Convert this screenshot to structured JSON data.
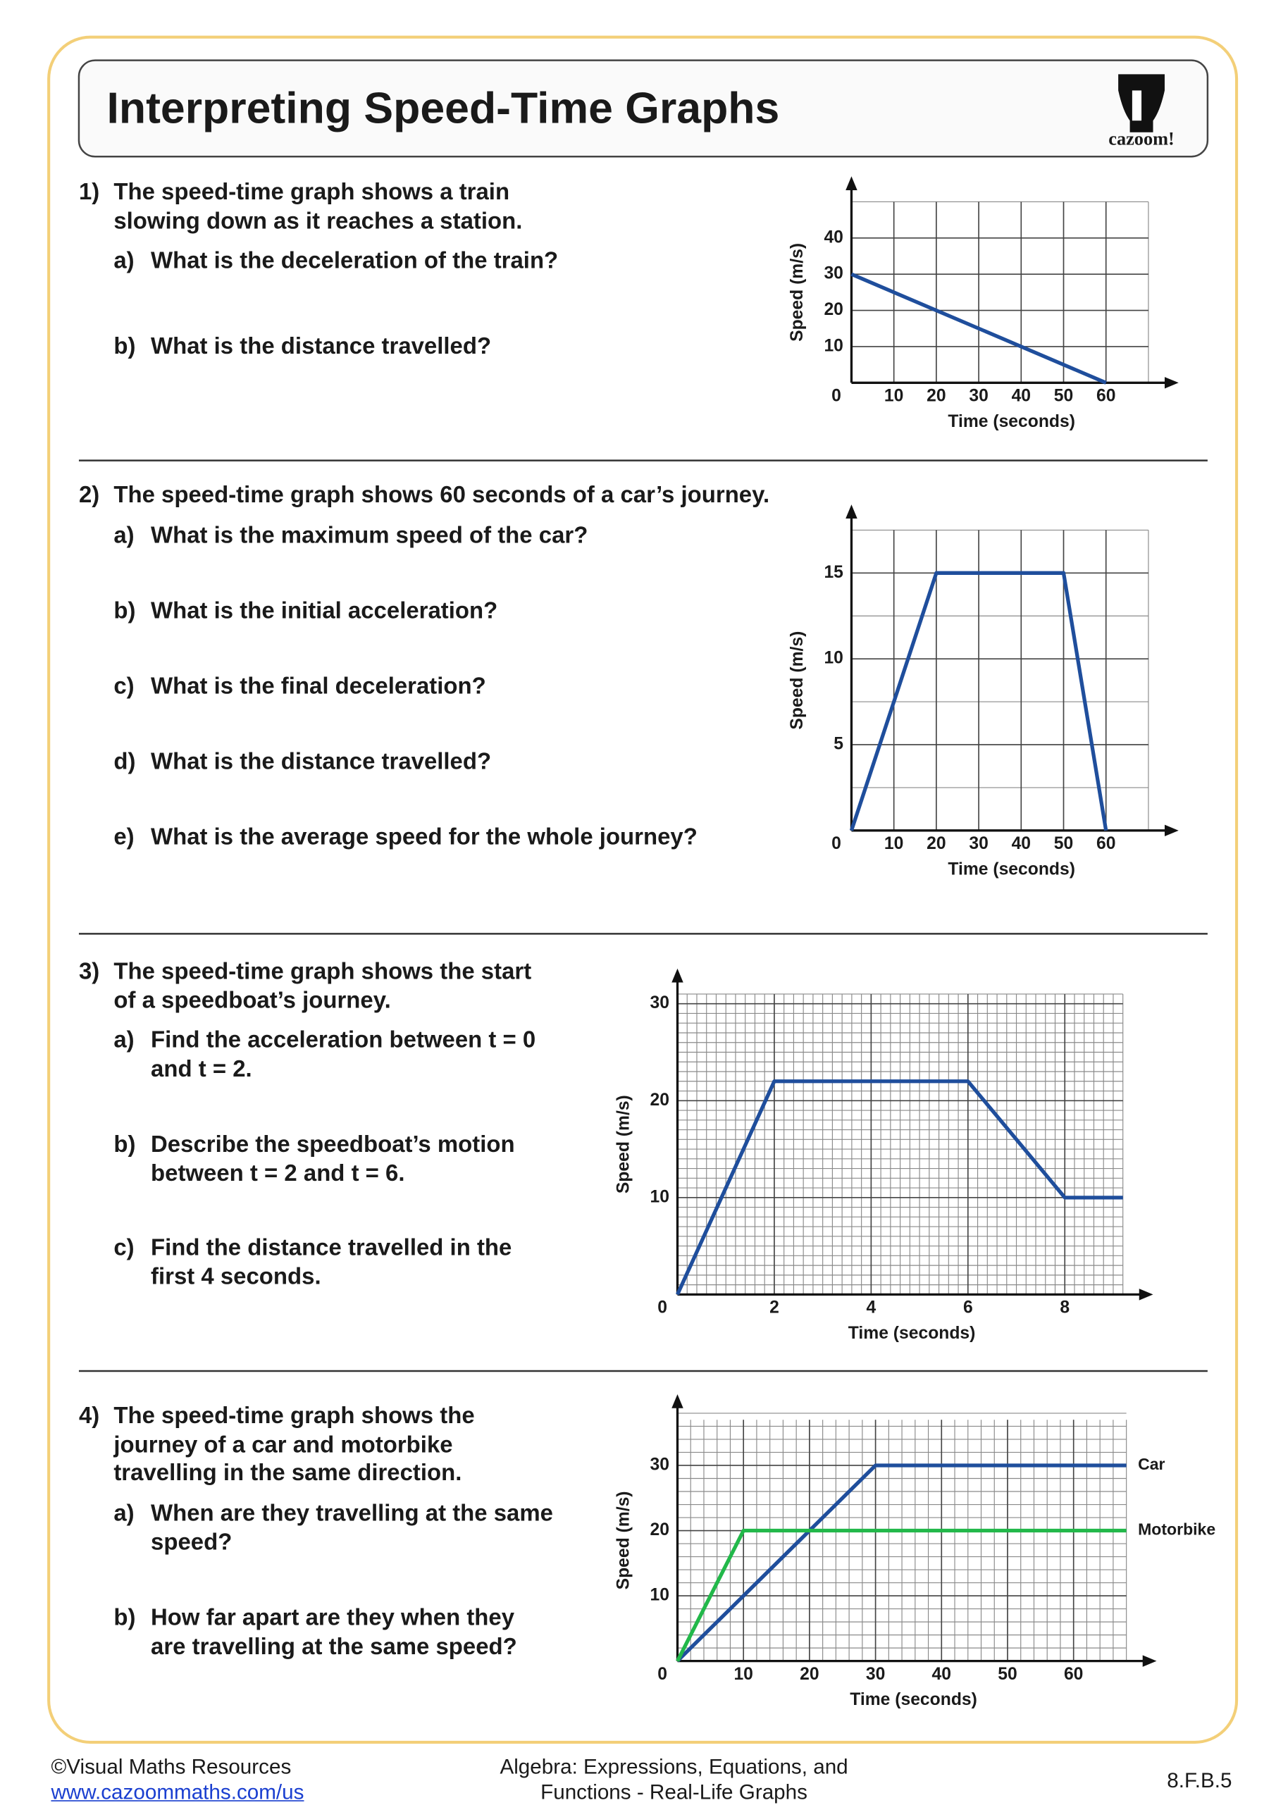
{
  "header": {
    "title": "Interpreting Speed-Time Graphs",
    "logo": "cazoom!"
  },
  "questions": [
    {
      "number": "1)",
      "lines": [
        "The speed-time graph shows a train",
        "slowing down as it reaches a station."
      ],
      "parts": [
        {
          "label": "a)",
          "lines": [
            "What is the deceleration of the train?"
          ]
        },
        {
          "label": "b)",
          "lines": [
            "What is the distance travelled?"
          ]
        }
      ]
    },
    {
      "number": "2)",
      "lines": [
        "The speed-time graph shows 60 seconds of a car’s journey."
      ],
      "parts": [
        {
          "label": "a)",
          "lines": [
            "What is the maximum speed of the car?"
          ]
        },
        {
          "label": "b)",
          "lines": [
            "What is the initial acceleration?"
          ]
        },
        {
          "label": "c)",
          "lines": [
            "What is the final deceleration?"
          ]
        },
        {
          "label": "d)",
          "lines": [
            "What is the distance travelled?"
          ]
        },
        {
          "label": "e)",
          "lines": [
            "What is the average speed for the whole journey?"
          ]
        }
      ]
    },
    {
      "number": "3)",
      "lines": [
        "The speed-time graph shows the start",
        "of a speedboat’s journey."
      ],
      "parts": [
        {
          "label": "a)",
          "lines": [
            "Find the acceleration between t = 0",
            "and t = 2."
          ]
        },
        {
          "label": "b)",
          "lines": [
            "Describe the speedboat’s motion",
            "between t = 2 and t = 6."
          ]
        },
        {
          "label": "c)",
          "lines": [
            "Find the distance travelled in the",
            "first 4 seconds."
          ]
        }
      ]
    },
    {
      "number": "4)",
      "lines": [
        "The speed-time graph shows the",
        "journey of a car and motorbike",
        "travelling in the same direction."
      ],
      "parts": [
        {
          "label": "a)",
          "lines": [
            "When are they travelling at the same",
            "speed?"
          ]
        },
        {
          "label": "b)",
          "lines": [
            "How far apart are they when they",
            "are travelling at the same speed?"
          ]
        }
      ]
    }
  ],
  "chart_data": [
    {
      "type": "line",
      "x_label": "Time (seconds)",
      "y_label": "Speed (m/s)",
      "xlim": [
        0,
        70
      ],
      "ylim": [
        0,
        50
      ],
      "xticks": [
        0,
        10,
        20,
        30,
        40,
        50,
        60
      ],
      "yticks": [
        10,
        20,
        30,
        40
      ],
      "grid": {
        "x_step": 10,
        "y_step": 10
      },
      "series": [
        {
          "color": "#1f4e9c",
          "x": [
            0,
            60
          ],
          "values": [
            30,
            0
          ]
        }
      ]
    },
    {
      "type": "line",
      "x_label": "Time (seconds)",
      "y_label": "Speed (m/s)",
      "xlim": [
        0,
        70
      ],
      "ylim": [
        0,
        17.5
      ],
      "xticks": [
        0,
        10,
        20,
        30,
        40,
        50,
        60
      ],
      "yticks": [
        5,
        10,
        15
      ],
      "grid": {
        "x_step": 10,
        "y_step": 2.5
      },
      "series": [
        {
          "color": "#1f4e9c",
          "x": [
            0,
            20,
            50,
            60
          ],
          "values": [
            0,
            15,
            15,
            0
          ]
        }
      ]
    },
    {
      "type": "line",
      "x_label": "Time (seconds)",
      "y_label": "Speed (m/s)",
      "xlim": [
        0,
        9.2
      ],
      "ylim": [
        0,
        31
      ],
      "xticks": [
        0,
        2,
        4,
        6,
        8
      ],
      "yticks": [
        10,
        20,
        30
      ],
      "grid": {
        "x_step": 0.2,
        "y_step": 1
      },
      "series": [
        {
          "color": "#1f4e9c",
          "x": [
            0,
            2,
            6,
            8,
            9.2
          ],
          "values": [
            0,
            22,
            22,
            10,
            10
          ]
        }
      ]
    },
    {
      "type": "line",
      "x_label": "Time (seconds)",
      "y_label": "Speed (m/s)",
      "xlim": [
        0,
        68
      ],
      "ylim": [
        0,
        37
      ],
      "xticks": [
        0,
        10,
        20,
        30,
        40,
        50,
        60
      ],
      "yticks": [
        10,
        20,
        30
      ],
      "grid": {
        "x_step": 2,
        "y_step": 2
      },
      "series": [
        {
          "name": "Car",
          "color": "#1f4e9c",
          "x": [
            0,
            30,
            68
          ],
          "values": [
            0,
            30,
            30
          ]
        },
        {
          "name": "Motorbike",
          "color": "#22b84a",
          "x": [
            0,
            10,
            68
          ],
          "values": [
            0,
            20,
            20
          ]
        }
      ]
    }
  ],
  "footer": {
    "left": "©Visual Maths Resources",
    "link": "www.cazoommaths.com/us",
    "center": [
      "Algebra: Expressions, Equations, and",
      "Functions - Real-Life Graphs"
    ],
    "right": "8.F.B.5"
  }
}
